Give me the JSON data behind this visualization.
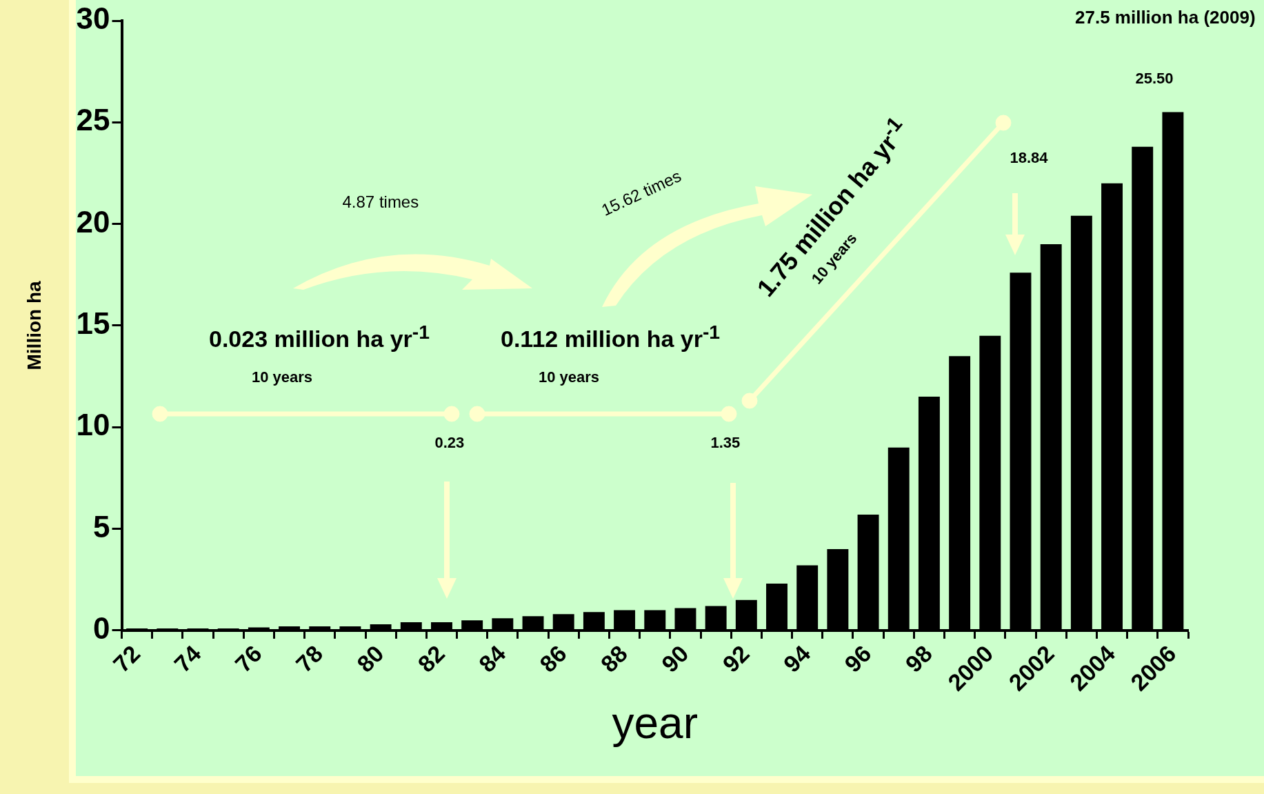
{
  "chart_data": {
    "type": "bar",
    "xlabel": "year",
    "ylabel": "Million ha",
    "categories": [
      "72",
      null,
      "74",
      null,
      "76",
      null,
      "78",
      null,
      "80",
      null,
      "82",
      null,
      "84",
      null,
      "86",
      null,
      "88",
      null,
      "90",
      null,
      "92",
      null,
      "94",
      null,
      "96",
      null,
      "98",
      null,
      "2000",
      null,
      "2002",
      null,
      "2004",
      null,
      "2006"
    ],
    "values": [
      0.1,
      0.1,
      0.1,
      0.1,
      0.15,
      0.2,
      0.2,
      0.2,
      0.3,
      0.4,
      0.4,
      0.5,
      0.6,
      0.7,
      0.8,
      0.9,
      1.0,
      1.0,
      1.1,
      1.2,
      1.5,
      2.3,
      3.2,
      4.0,
      5.7,
      9.0,
      11.5,
      13.5,
      14.5,
      17.6,
      19.0,
      20.4,
      22.0,
      23.8,
      25.5
    ],
    "color": "#000000",
    "ylim": [
      0,
      30
    ],
    "yticks": [
      0,
      5,
      10,
      15,
      20,
      25,
      30
    ],
    "annotations": [
      "27.5 million ha (2009)",
      "25.50",
      "18.84",
      "4.87 times",
      "15.62 times",
      "0.023 million ha yr$^{-1}$",
      "10 years",
      "0.112 million ha yr$^{-1}$",
      "10 years",
      "1.75 million ha yr$^{-1}$",
      "10 years",
      "0.23",
      "1.35"
    ]
  }
}
